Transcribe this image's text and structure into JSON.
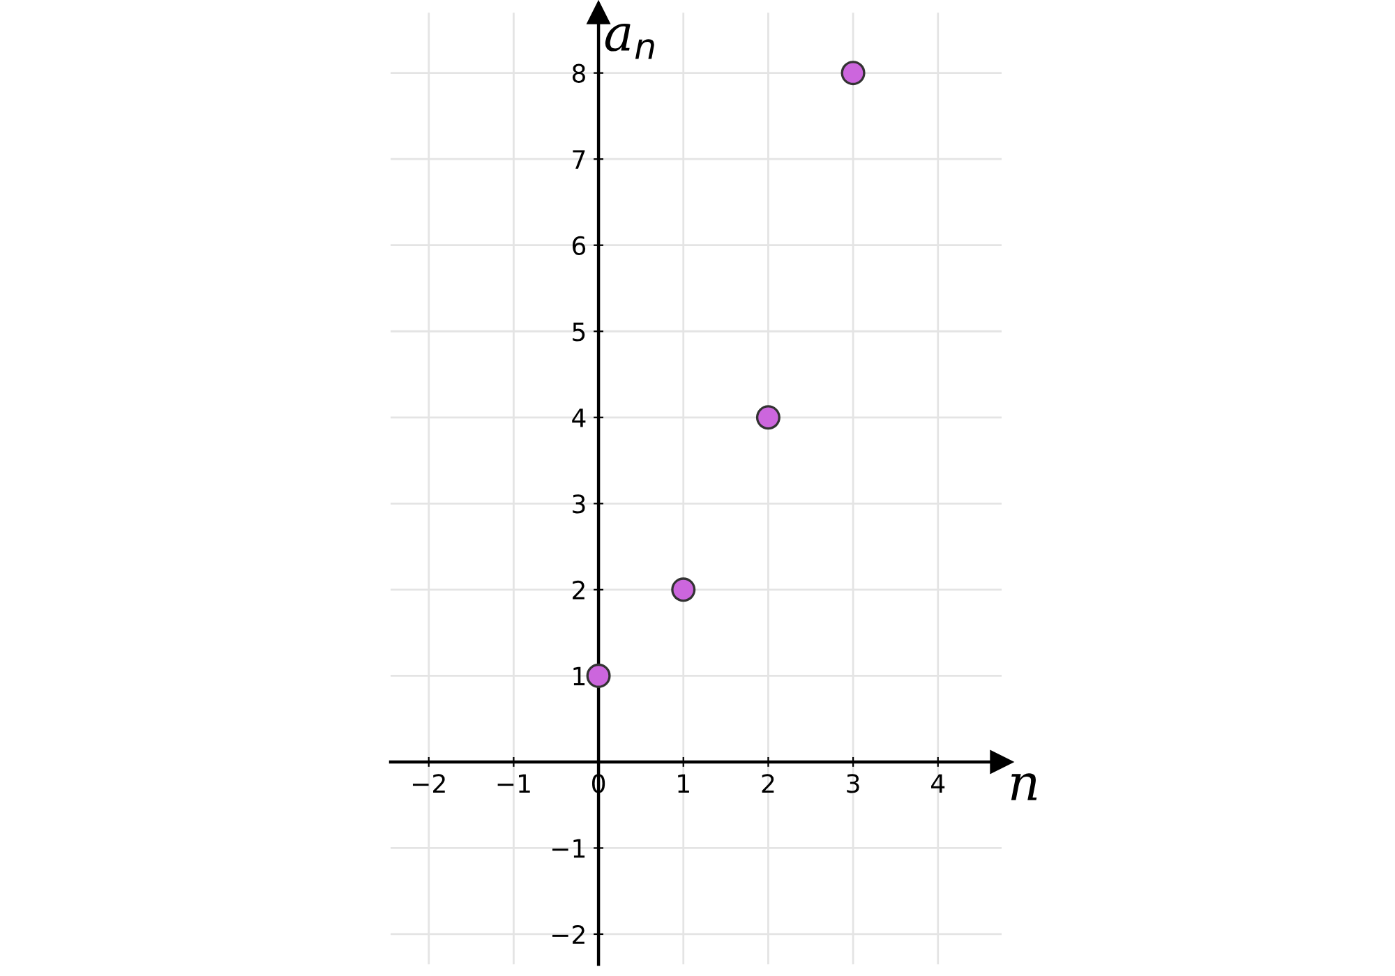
{
  "chart_data": {
    "type": "scatter",
    "xlabel": "n",
    "ylabel": "a$_{n}$",
    "x": [
      0,
      1,
      2,
      3
    ],
    "series": [
      {
        "color": "#cc66dd",
        "values": [
          1,
          2,
          4,
          8
        ]
      }
    ],
    "xlim": [
      -2.45,
      4.75
    ],
    "ylim": [
      -2.35,
      8.7
    ],
    "xticks": [
      {
        "value": -2,
        "label": "−2"
      },
      {
        "value": -1,
        "label": "−1"
      },
      {
        "value": 0,
        "label": "0"
      },
      1,
      2,
      3,
      4
    ],
    "yticks": [
      {
        "value": -2,
        "label": "−2"
      },
      {
        "value": -1,
        "label": "−1"
      },
      1,
      2,
      3,
      4,
      5,
      6,
      7,
      8
    ],
    "grid": true,
    "marker": "circle"
  }
}
